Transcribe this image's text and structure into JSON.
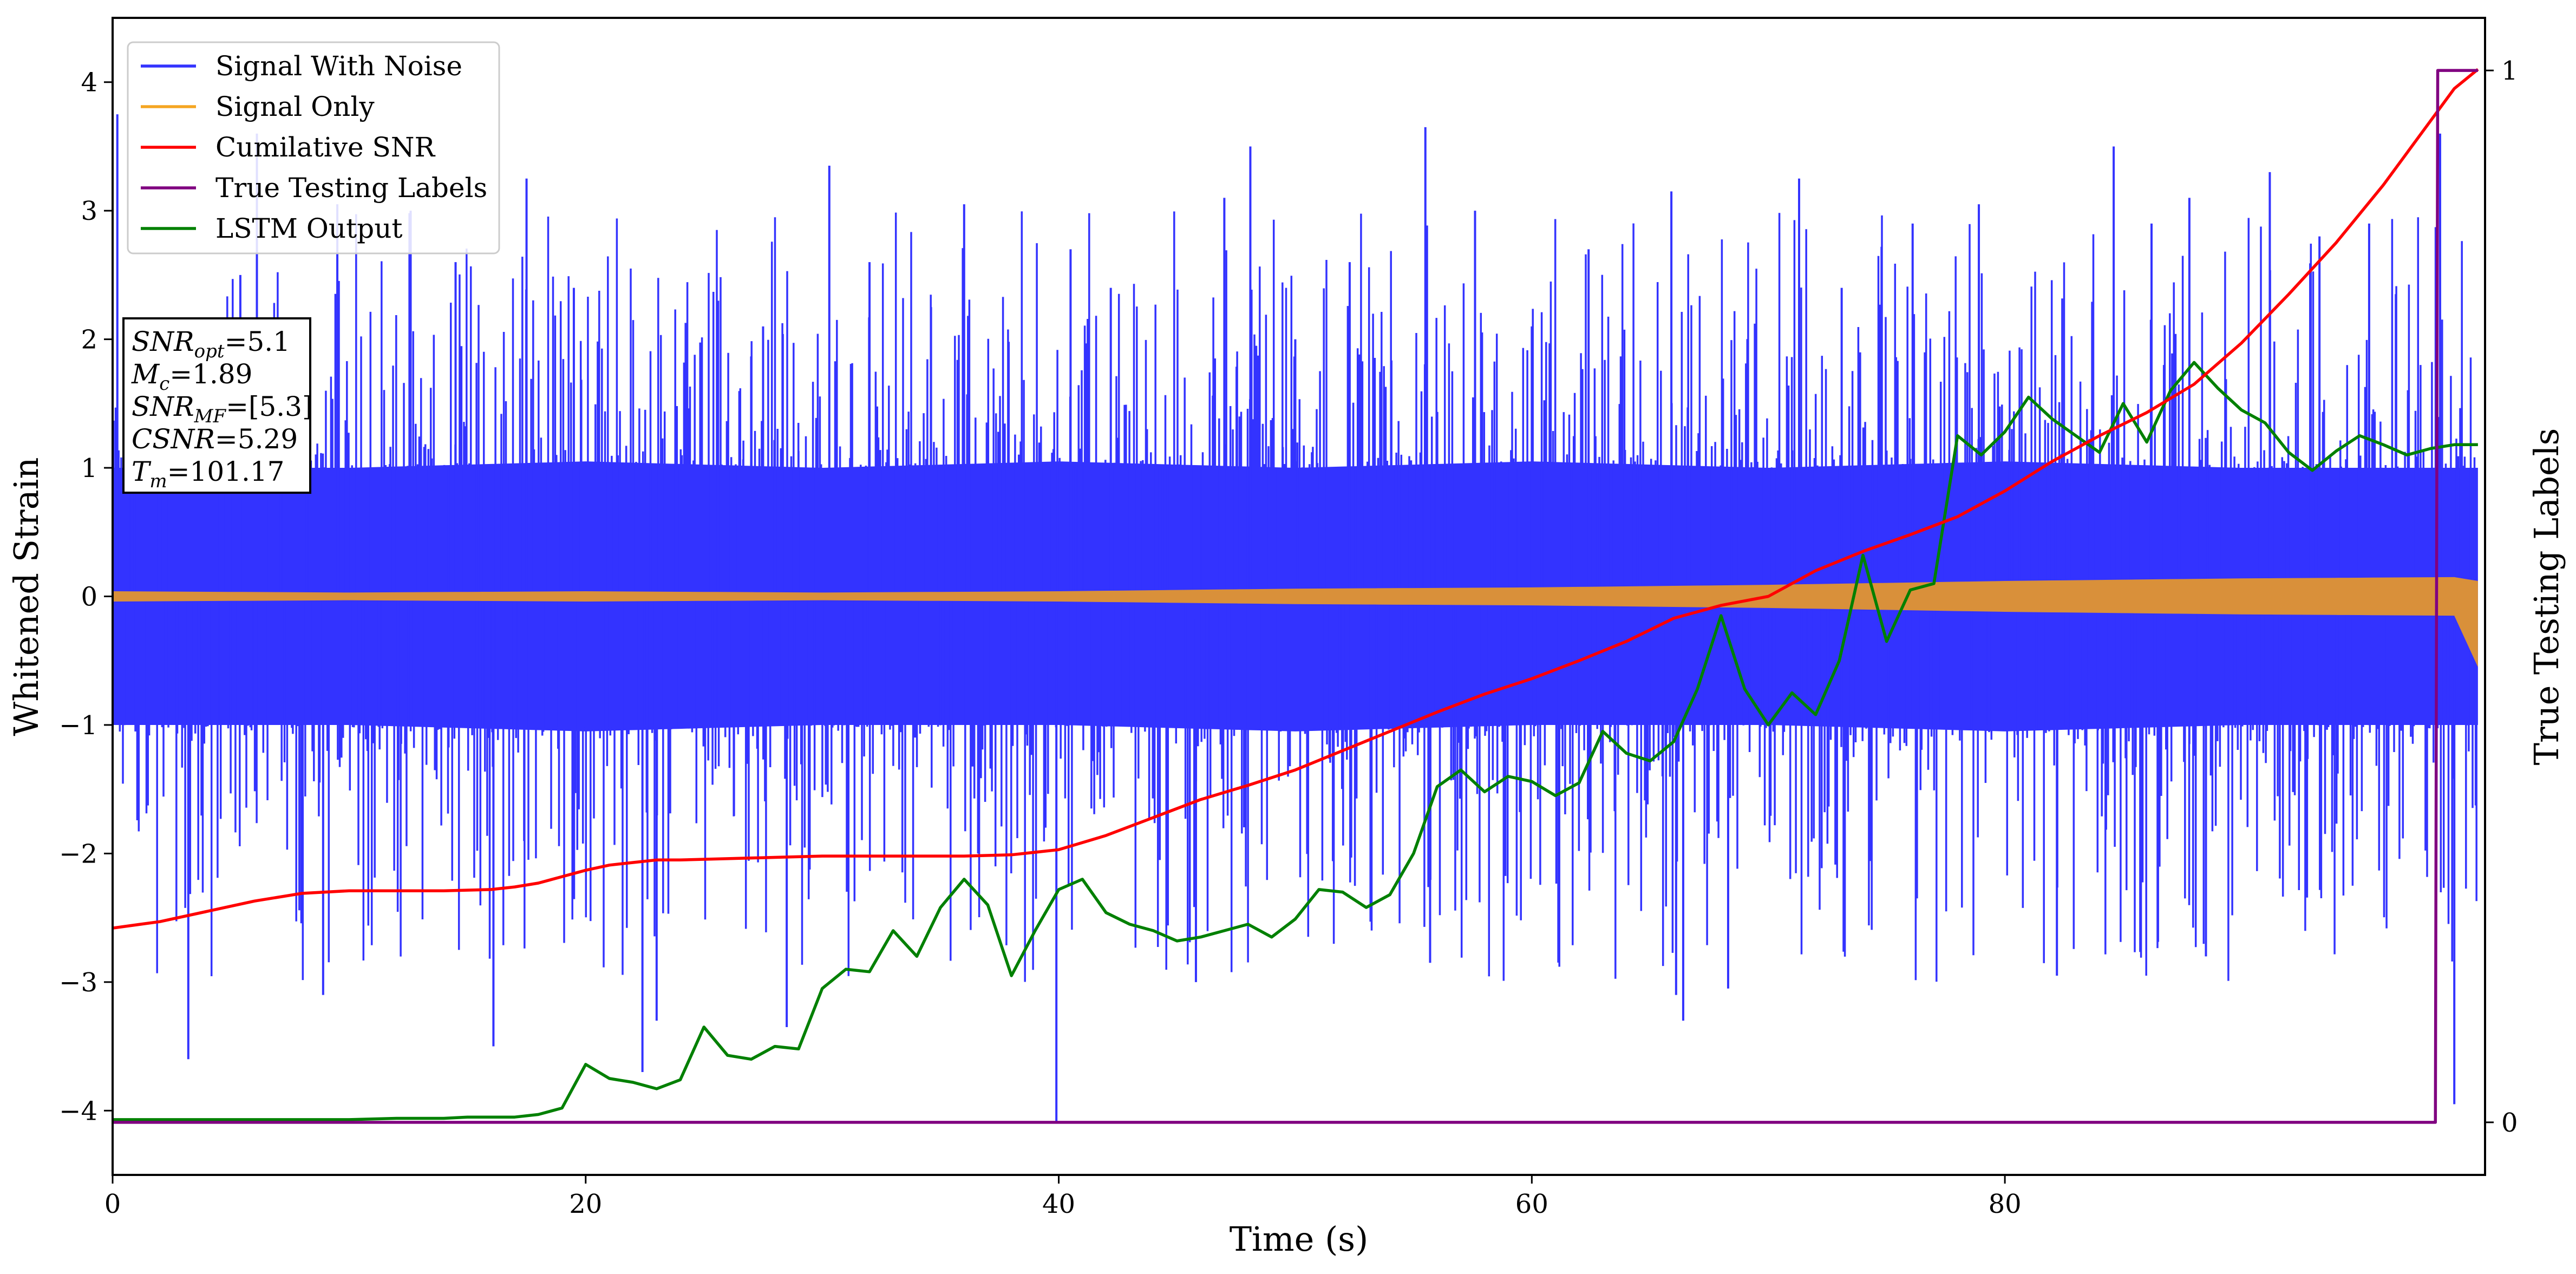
{
  "chart_data": {
    "type": "line",
    "title": "",
    "xlabel": "Time (s)",
    "ylabel": "Whitened Strain",
    "y2label": "True Testing Labels",
    "xlim": [
      0,
      100.3
    ],
    "ylim": [
      -4.5,
      4.5
    ],
    "y2lim": [
      -0.05,
      1.05
    ],
    "xticks": [
      0,
      20,
      40,
      60,
      80
    ],
    "yticks": [
      -4,
      -3,
      -2,
      -1,
      0,
      1,
      2,
      3,
      4
    ],
    "y2ticks": [
      0,
      1
    ],
    "legend_position": "upper-left",
    "grid": false,
    "colors": {
      "noise": "#3333ff",
      "signal": "#f5a623",
      "signal_band": "#d9903a",
      "csnr": "#ff0000",
      "labels": "#800080",
      "lstm": "#008000"
    },
    "series": [
      {
        "name": "Signal With Noise",
        "kind": "noise-envelope",
        "upper": [
          [
            0,
            1.0
          ],
          [
            10,
            1.0
          ],
          [
            20,
            1.05
          ],
          [
            30,
            1.0
          ],
          [
            40,
            1.05
          ],
          [
            50,
            1.0
          ],
          [
            60,
            1.05
          ],
          [
            70,
            1.0
          ],
          [
            80,
            1.05
          ],
          [
            90,
            1.0
          ],
          [
            100,
            1.0
          ]
        ],
        "lower": [
          [
            0,
            -1.0
          ],
          [
            10,
            -1.0
          ],
          [
            20,
            -1.05
          ],
          [
            30,
            -1.0
          ],
          [
            40,
            -1.0
          ],
          [
            50,
            -1.05
          ],
          [
            60,
            -1.0
          ],
          [
            70,
            -1.0
          ],
          [
            80,
            -1.05
          ],
          [
            90,
            -1.0
          ],
          [
            100,
            -1.0
          ]
        ],
        "spikes": [
          [
            0.2,
            3.75
          ],
          [
            1.5,
            2.1
          ],
          [
            3.2,
            -3.6
          ],
          [
            5.4,
            2.5
          ],
          [
            6.1,
            3.6
          ],
          [
            8.9,
            -3.1
          ],
          [
            9.5,
            3.05
          ],
          [
            12.6,
            3.0
          ],
          [
            14.5,
            2.6
          ],
          [
            16.1,
            -3.5
          ],
          [
            17.5,
            3.25
          ],
          [
            19.5,
            2.4
          ],
          [
            22.4,
            -3.7
          ],
          [
            23.0,
            -3.3
          ],
          [
            25.6,
            2.3
          ],
          [
            27.5,
            2.1
          ],
          [
            28.5,
            -3.35
          ],
          [
            30.3,
            3.35
          ],
          [
            32.0,
            2.6
          ],
          [
            34.6,
            2.25
          ],
          [
            36.0,
            3.05
          ],
          [
            39.9,
            -4.1
          ],
          [
            40.5,
            2.7
          ],
          [
            42.2,
            2.4
          ],
          [
            45.8,
            -3.0
          ],
          [
            47.0,
            3.1
          ],
          [
            48.1,
            3.5
          ],
          [
            50.0,
            2.0
          ],
          [
            52.3,
            2.6
          ],
          [
            55.5,
            3.65
          ],
          [
            55.7,
            -2.85
          ],
          [
            57.6,
            3.0
          ],
          [
            60.0,
            2.1
          ],
          [
            62.4,
            2.7
          ],
          [
            65.9,
            3.15
          ],
          [
            66.1,
            -3.1
          ],
          [
            66.4,
            -3.3
          ],
          [
            68.3,
            -3.05
          ],
          [
            71.3,
            3.25
          ],
          [
            73.1,
            2.4
          ],
          [
            76.1,
            2.9
          ],
          [
            78.9,
            3.05
          ],
          [
            82.2,
            -2.95
          ],
          [
            84.6,
            3.5
          ],
          [
            86.2,
            2.9
          ],
          [
            87.8,
            3.1
          ],
          [
            88.5,
            -2.8
          ],
          [
            91.2,
            3.3
          ],
          [
            93.3,
            2.8
          ],
          [
            95.4,
            2.9
          ],
          [
            98.4,
            3.6
          ],
          [
            99.0,
            -3.95
          ]
        ]
      },
      {
        "name": "Signal Only",
        "kind": "band",
        "upper": [
          [
            0,
            0.04
          ],
          [
            10,
            0.03
          ],
          [
            20,
            0.04
          ],
          [
            30,
            0.03
          ],
          [
            40,
            0.04
          ],
          [
            50,
            0.06
          ],
          [
            60,
            0.07
          ],
          [
            70,
            0.09
          ],
          [
            80,
            0.12
          ],
          [
            90,
            0.14
          ],
          [
            99,
            0.15
          ],
          [
            100,
            0.12
          ]
        ],
        "lower": [
          [
            0,
            -0.04
          ],
          [
            10,
            -0.03
          ],
          [
            20,
            -0.04
          ],
          [
            30,
            -0.03
          ],
          [
            40,
            -0.04
          ],
          [
            50,
            -0.06
          ],
          [
            60,
            -0.07
          ],
          [
            70,
            -0.09
          ],
          [
            80,
            -0.12
          ],
          [
            90,
            -0.14
          ],
          [
            99,
            -0.15
          ],
          [
            100,
            -0.55
          ]
        ]
      },
      {
        "name": "Cumilative SNR",
        "x": [
          0,
          2,
          4,
          6,
          8,
          10,
          12,
          14,
          16,
          17,
          18,
          19,
          20,
          21,
          22,
          23,
          24,
          26,
          28,
          30,
          32,
          34,
          36,
          38,
          40,
          42,
          44,
          46,
          48,
          50,
          52,
          54,
          56,
          58,
          60,
          62,
          64,
          66,
          68,
          70,
          72,
          74,
          76,
          78,
          80,
          82,
          84,
          86,
          88,
          90,
          92,
          94,
          96,
          98,
          99,
          100
        ],
        "values": [
          -2.58,
          -2.53,
          -2.45,
          -2.37,
          -2.31,
          -2.29,
          -2.29,
          -2.29,
          -2.28,
          -2.26,
          -2.23,
          -2.18,
          -2.13,
          -2.09,
          -2.07,
          -2.05,
          -2.05,
          -2.04,
          -2.03,
          -2.02,
          -2.02,
          -2.02,
          -2.02,
          -2.01,
          -1.97,
          -1.86,
          -1.72,
          -1.58,
          -1.47,
          -1.35,
          -1.2,
          -1.05,
          -0.9,
          -0.76,
          -0.64,
          -0.5,
          -0.35,
          -0.17,
          -0.07,
          0.0,
          0.2,
          0.35,
          0.48,
          0.62,
          0.82,
          1.05,
          1.25,
          1.43,
          1.65,
          1.97,
          2.35,
          2.75,
          3.2,
          3.7,
          3.95,
          4.1
        ]
      },
      {
        "name": "True Testing Labels",
        "axis": "right",
        "x": [
          0,
          98.2,
          98.3,
          100
        ],
        "values": [
          0,
          0,
          1,
          1
        ]
      },
      {
        "name": "LSTM Output",
        "x": [
          0,
          5,
          10,
          12,
          14,
          15,
          16,
          17,
          18,
          19,
          20,
          21,
          22,
          23,
          24,
          25,
          26,
          27,
          28,
          29,
          30,
          31,
          32,
          33,
          34,
          35,
          36,
          37,
          38,
          39,
          40,
          41,
          42,
          43,
          44,
          45,
          46,
          47,
          48,
          49,
          50,
          51,
          52,
          53,
          54,
          55,
          56,
          57,
          58,
          59,
          60,
          61,
          62,
          63,
          64,
          65,
          66,
          67,
          68,
          69,
          70,
          71,
          72,
          73,
          74,
          75,
          76,
          77,
          78,
          79,
          80,
          81,
          82,
          83,
          84,
          85,
          86,
          87,
          88,
          89,
          90,
          91,
          92,
          93,
          94,
          95,
          96,
          97,
          98,
          99,
          100
        ],
        "values": [
          -4.07,
          -4.07,
          -4.07,
          -4.06,
          -4.06,
          -4.05,
          -4.05,
          -4.05,
          -4.03,
          -3.98,
          -3.64,
          -3.75,
          -3.78,
          -3.83,
          -3.76,
          -3.35,
          -3.57,
          -3.6,
          -3.5,
          -3.52,
          -3.05,
          -2.9,
          -2.92,
          -2.6,
          -2.8,
          -2.42,
          -2.2,
          -2.4,
          -2.95,
          -2.6,
          -2.28,
          -2.2,
          -2.46,
          -2.55,
          -2.6,
          -2.68,
          -2.65,
          -2.6,
          -2.55,
          -2.65,
          -2.51,
          -2.28,
          -2.3,
          -2.42,
          -2.32,
          -2.0,
          -1.48,
          -1.35,
          -1.52,
          -1.4,
          -1.44,
          -1.55,
          -1.45,
          -1.05,
          -1.22,
          -1.28,
          -1.13,
          -0.72,
          -0.15,
          -0.72,
          -1.0,
          -0.75,
          -0.92,
          -0.5,
          0.32,
          -0.35,
          0.05,
          0.1,
          1.25,
          1.1,
          1.28,
          1.55,
          1.38,
          1.25,
          1.12,
          1.5,
          1.2,
          1.6,
          1.82,
          1.62,
          1.45,
          1.35,
          1.12,
          0.98,
          1.13,
          1.25,
          1.18,
          1.1,
          1.15,
          1.18,
          1.18
        ]
      }
    ],
    "annotation": {
      "lines": [
        {
          "var": "SNR",
          "sub": "opt",
          "value": "=5.1"
        },
        {
          "var": "M",
          "sub": "c",
          "value": "=1.89"
        },
        {
          "var": "SNR",
          "sub": "MF",
          "value": "=[5.3]"
        },
        {
          "var": "CSNR",
          "sub": "",
          "value": "=5.29"
        },
        {
          "var": "T",
          "sub": "m",
          "value": "=101.17"
        }
      ]
    }
  }
}
